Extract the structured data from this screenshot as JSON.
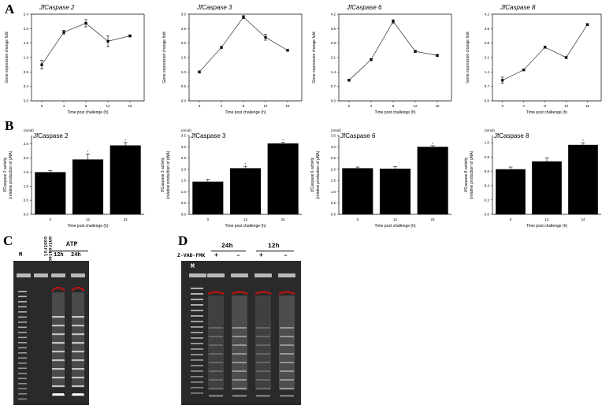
{
  "panels": {
    "A": "A",
    "B": "B",
    "C": "C",
    "D": "D"
  },
  "chart_data": [
    {
      "type": "line",
      "title": "JfCaspase 2",
      "xlabel": "Time post challenge (h)",
      "ylabel": "Gene expression change fold",
      "x": [
        0,
        4,
        8,
        12,
        16
      ],
      "y": [
        1.0,
        1.9,
        2.15,
        1.65,
        1.8
      ],
      "err": [
        0.12,
        0.05,
        0.1,
        0.15,
        0.03
      ],
      "xticks": [
        "0",
        "4",
        "8",
        "12",
        "16"
      ],
      "yticks": [
        "0.0",
        "0.4",
        "0.8",
        "1.2",
        "1.6",
        "2.0",
        "2.4"
      ],
      "ylim": [
        0,
        2.4
      ]
    },
    {
      "type": "line",
      "title": "JfCaspase 3",
      "xlabel": "Time post challenge (h)",
      "ylabel": "Gene expression change fold",
      "x": [
        0,
        4,
        8,
        12,
        16
      ],
      "y": [
        1.0,
        1.85,
        2.9,
        2.2,
        1.75
      ],
      "err": [
        0.04,
        0.03,
        0.05,
        0.1,
        0.03
      ],
      "xticks": [
        "0",
        "4",
        "8",
        "12",
        "16"
      ],
      "yticks": [
        "0.0",
        "0.5",
        "1.0",
        "1.5",
        "2.0",
        "2.5",
        "3.0"
      ],
      "ylim": [
        0,
        3.0
      ]
    },
    {
      "type": "line",
      "title": "JfCaspase 6",
      "xlabel": "Time post challenge (h)",
      "ylabel": "Gene expression change fold",
      "x": [
        0,
        4,
        8,
        12,
        16
      ],
      "y": [
        1.0,
        2.0,
        3.85,
        2.4,
        2.2
      ],
      "err": [
        0.05,
        0.05,
        0.08,
        0.05,
        0.05
      ],
      "xticks": [
        "0",
        "4",
        "8",
        "12",
        "16"
      ],
      "yticks": [
        "0.0",
        "0.7",
        "1.4",
        "2.1",
        "2.8",
        "3.5",
        "4.2"
      ],
      "ylim": [
        0,
        4.2
      ]
    },
    {
      "type": "line",
      "title": "JfCaspase 8",
      "xlabel": "Time post challenge (h)",
      "ylabel": "Gene expression change fold",
      "x": [
        0,
        4,
        8,
        12,
        16
      ],
      "y": [
        1.0,
        1.5,
        2.6,
        2.1,
        3.7
      ],
      "err": [
        0.15,
        0.04,
        0.05,
        0.05,
        0.05
      ],
      "xticks": [
        "0",
        "4",
        "8",
        "12",
        "16"
      ],
      "yticks": [
        "0.0",
        "0.7",
        "1.4",
        "2.1",
        "2.8",
        "3.5",
        "4.2"
      ],
      "ylim": [
        0,
        4.2
      ]
    },
    {
      "type": "bar",
      "title": "JfCaspase 2",
      "unit": "(nmol)",
      "xlabel": "Time post challenge (h)",
      "ylabel": "JfCaspase 2 activity",
      "ylabel2": "(relative production of pNA)",
      "categories": [
        "0",
        "12",
        "24"
      ],
      "values": [
        1.5,
        1.95,
        2.45
      ],
      "err": [
        0.05,
        0.2,
        0.1
      ],
      "sig": [
        "",
        "*",
        "*"
      ],
      "yticks": [
        "0.0",
        "0.5",
        "1.0",
        "1.5",
        "2.0",
        "2.5"
      ],
      "ylim": [
        0,
        2.8
      ]
    },
    {
      "type": "bar",
      "title": "JfCaspase 3",
      "unit": "(nmol)",
      "xlabel": "Time post challenge (h)",
      "ylabel": "JfCaspase 3 activity",
      "ylabel2": "(relative production of pNA)",
      "categories": [
        "0",
        "12",
        "24"
      ],
      "values": [
        1.45,
        2.05,
        3.15
      ],
      "err": [
        0.1,
        0.08,
        0.05
      ],
      "sig": [
        "",
        "*",
        "*"
      ],
      "yticks": [
        "0.0",
        "0.5",
        "1.0",
        "1.5",
        "2.0",
        "2.5",
        "3.0",
        "3.5"
      ],
      "ylim": [
        0,
        3.5
      ]
    },
    {
      "type": "bar",
      "title": "JfCaspase 6",
      "unit": "(nmol)",
      "xlabel": "Time post challenge (h)",
      "ylabel": "JfCaspase 6 activity",
      "ylabel2": "(relative production of pNA)",
      "categories": [
        "0",
        "12",
        "24"
      ],
      "values": [
        2.05,
        2.03,
        3.0
      ],
      "err": [
        0.05,
        0.08,
        0.05
      ],
      "sig": [
        "",
        "",
        "*"
      ],
      "yticks": [
        "0.0",
        "0.5",
        "1.0",
        "1.5",
        "2.0",
        "2.5",
        "3.0",
        "3.5"
      ],
      "ylim": [
        0,
        3.5
      ]
    },
    {
      "type": "bar",
      "title": "JfCaspase 8",
      "unit": "(nmol)",
      "xlabel": "Time post challenge (h)",
      "ylabel": "JfCaspase 8 activity",
      "ylabel2": "(relative production of pNA)",
      "categories": [
        "0",
        "12",
        "24"
      ],
      "values": [
        0.63,
        0.74,
        0.97
      ],
      "err": [
        0.03,
        0.05,
        0.03
      ],
      "sig": [
        "",
        "",
        "*"
      ],
      "yticks": [
        "0.0",
        "0.2",
        "0.4",
        "0.6",
        "0.8",
        "1.0"
      ],
      "ylim": [
        0,
        1.1
      ]
    }
  ],
  "gel_c": {
    "marker": "M",
    "control": "untreated control",
    "group": "ATP",
    "lanes": [
      "12h",
      "24h"
    ]
  },
  "gel_d": {
    "marker": "M",
    "reagent": "Z-VAD-FMK",
    "groups": [
      "24h",
      "12h"
    ],
    "signs": [
      "+",
      "–",
      "+",
      "–"
    ]
  },
  "colors": {
    "line": "#333333",
    "bar": "#000000",
    "gel_bg": "#2a2a2a",
    "band": "#e8e8e8",
    "well_red": "#cc1111"
  }
}
